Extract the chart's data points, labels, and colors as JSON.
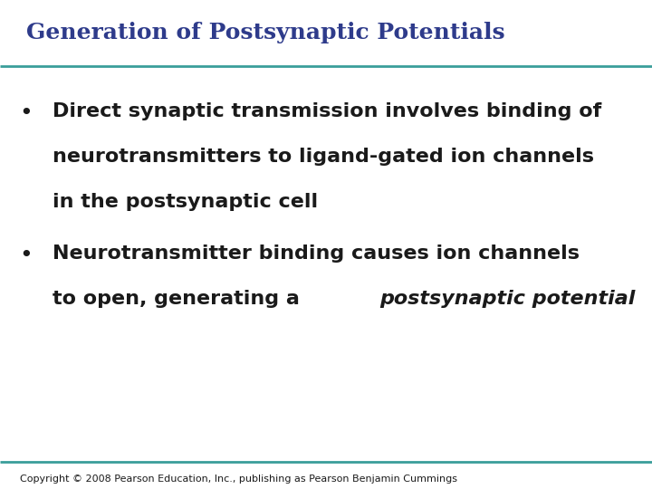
{
  "title": "Generation of Postsynaptic Potentials",
  "title_color": "#2E3B8B",
  "title_fontsize": 18,
  "background_color": "#FFFFFF",
  "line_color": "#3A9E9A",
  "line_thickness": 2.0,
  "bullet_color": "#1a1a1a",
  "bullet_fontsize": 16,
  "bullet1_line1": "Direct synaptic transmission involves binding of",
  "bullet1_line2": "neurotransmitters to ligand-gated ion channels",
  "bullet1_line3": "in the postsynaptic cell",
  "bullet2_line1": "Neurotransmitter binding causes ion channels",
  "bullet2_line2_normal": "to open, generating a ",
  "bullet2_line2_italic": "postsynaptic potential",
  "copyright": "Copyright © 2008 Pearson Education, Inc., publishing as Pearson Benjamin Cummings",
  "copyright_fontsize": 8
}
